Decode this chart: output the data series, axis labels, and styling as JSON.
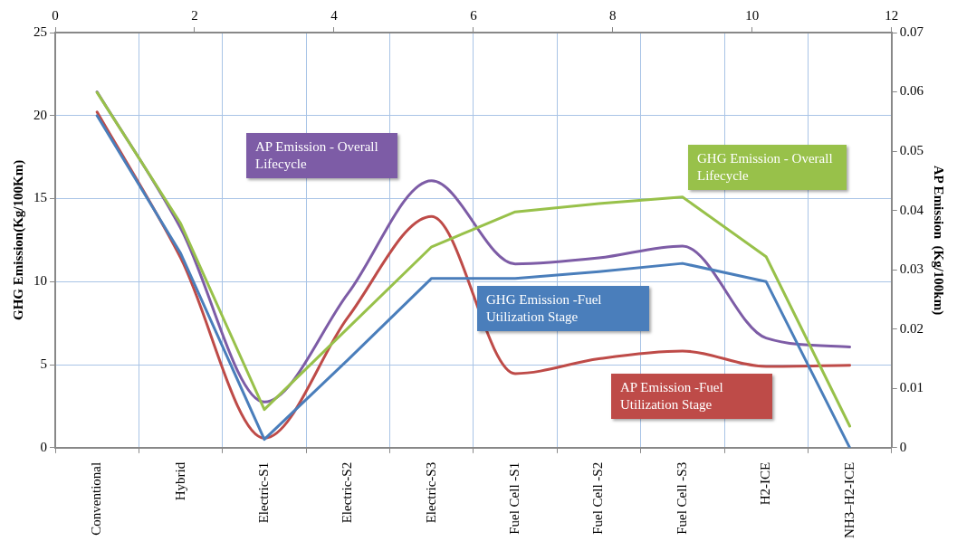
{
  "chart_data": {
    "type": "line",
    "categories": [
      "Conventional",
      "Hybrid",
      "Electric-S1",
      "Electric-S2",
      "Electric-S3",
      "Fuel Cell -S1",
      "Fuel Cell -S2",
      "Fuel Cell -S3",
      "H2-ICE",
      "NH3–H2-ICE"
    ],
    "ylabel": "GHG Emission(Kg/100Km)",
    "y2label": "AP Emission  (Kg/100km)",
    "ylim": [
      0,
      25
    ],
    "yticks": [
      0,
      5,
      10,
      15,
      20,
      25
    ],
    "y2lim": [
      0,
      0.07
    ],
    "y2ticks": [
      0,
      0.01,
      0.02,
      0.03,
      0.04,
      0.05,
      0.06,
      0.07
    ],
    "x2lim": [
      0,
      12
    ],
    "x2ticks": [
      0,
      2,
      4,
      6,
      8,
      10,
      12
    ],
    "grid": true,
    "legend": false,
    "marker": "none",
    "series": [
      {
        "name": "GHG Emission -Fuel Utilization Stage",
        "color": "#4a7ebb",
        "values": [
          20,
          11.7,
          0.5,
          5.3,
          10.2,
          10.2,
          10.6,
          11.1,
          10.0,
          0
        ]
      },
      {
        "name": "GHG Emission - Overall Lifecycle",
        "color": "#98c14a",
        "values": [
          21.4,
          13.5,
          2.3,
          7.2,
          12.1,
          14.2,
          14.7,
          15.1,
          11.5,
          1.3
        ]
      },
      {
        "name": "AP Emission - Overall Lifecycle",
        "color": "#7d5ca6",
        "axis": "y2",
        "values": [
          0.06,
          0.037,
          0.0077,
          0.026,
          0.045,
          0.031,
          0.032,
          0.034,
          0.0185,
          0.017
        ]
      },
      {
        "name": "AP Emission -Fuel Utilization Stage",
        "color": "#be4b48",
        "axis": "y2",
        "values": [
          0.0566,
          0.032,
          0.0016,
          0.022,
          0.039,
          0.0125,
          0.015,
          0.0163,
          0.0137,
          0.0139
        ]
      }
    ]
  }
}
